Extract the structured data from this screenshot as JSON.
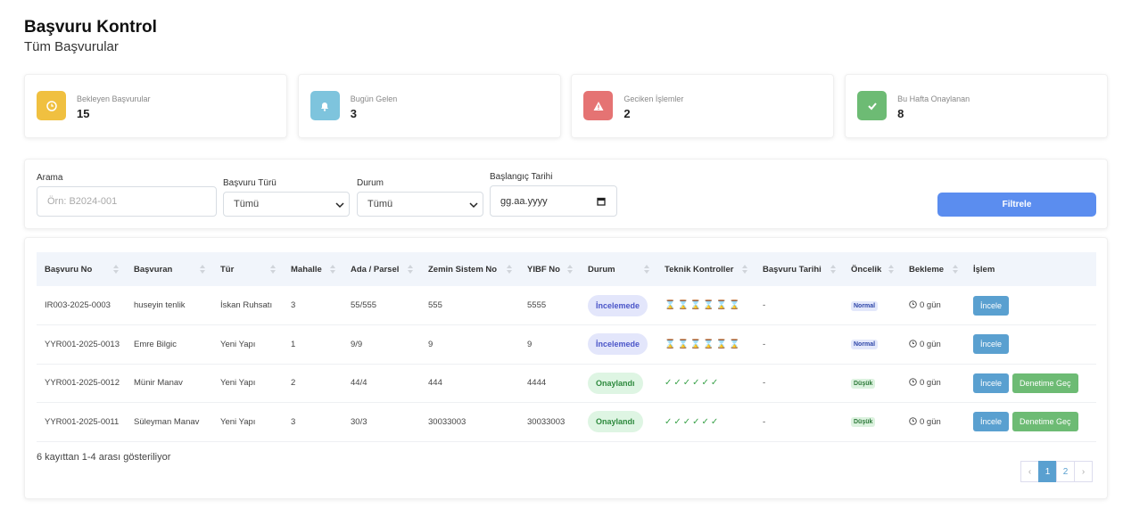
{
  "header": {
    "title": "Başvuru Kontrol",
    "subtitle": "Tüm Başvurular"
  },
  "stats": [
    {
      "label": "Bekleyen Başvurular",
      "value": 15,
      "color": "#f0c040"
    },
    {
      "label": "Bugün Gelen",
      "value": 3,
      "color": "#7ec4dd"
    },
    {
      "label": "Geciken İşlemler",
      "value": 2,
      "color": "#e57373"
    },
    {
      "label": "Bu Hafta Onaylanan",
      "value": 8,
      "color": "#6dbb74"
    }
  ],
  "filters": {
    "search": {
      "label": "Arama",
      "placeholder": "Örn: B2024-001"
    },
    "type": {
      "label": "Başvuru Türü",
      "selected": "Tümü"
    },
    "status": {
      "label": "Durum",
      "selected": "Tümü"
    },
    "date": {
      "label": "Başlangıç Tarihi",
      "placeholder": "gg.aa.yyyy"
    },
    "button": "Filtrele"
  },
  "table": {
    "columns": [
      "Başvuru No",
      "Başvuran",
      "Tür",
      "Mahalle",
      "Ada / Parsel",
      "Zemin Sistem No",
      "YIBF No",
      "Durum",
      "Teknik Kontroller",
      "Başvuru Tarihi",
      "Öncelik",
      "Bekleme",
      "İşlem"
    ],
    "rows": [
      {
        "cells": [
          "IR003-2025-0003",
          "huseyin tenlik",
          "İskan Ruhsatı",
          "3",
          "55/555",
          "555",
          "5555"
        ],
        "status": {
          "text": "İncelemede",
          "color": "#4a55c8",
          "bg": "#e3e6fb"
        },
        "checks": {
          "text": "⌛⌛⌛⌛⌛⌛",
          "color": "#c8a85a"
        },
        "date": "-",
        "priority": {
          "text": "Normal",
          "color": "#2e46a8",
          "bg": "#e3e8fb"
        },
        "wait": "0 gün",
        "actions": [
          "İncele"
        ]
      },
      {
        "cells": [
          "YYR001-2025-0013",
          "Emre Bilgic",
          "Yeni Yapı",
          "1",
          "9/9",
          "9",
          "9"
        ],
        "status": {
          "text": "İncelemede",
          "color": "#4a55c8",
          "bg": "#e3e6fb"
        },
        "checks": {
          "text": "⌛⌛⌛⌛⌛⌛",
          "color": "#c8a85a"
        },
        "date": "-",
        "priority": {
          "text": "Normal",
          "color": "#2e46a8",
          "bg": "#e3e8fb"
        },
        "wait": "0 gün",
        "actions": [
          "İncele"
        ]
      },
      {
        "cells": [
          "YYR001-2025-0012",
          "Münir Manav",
          "Yeni Yapı",
          "2",
          "44/4",
          "444",
          "4444"
        ],
        "status": {
          "text": "Onaylandı",
          "color": "#2e8a3e",
          "bg": "#def5e3"
        },
        "checks": {
          "text": "✓✓✓✓✓✓",
          "color": "#3aa24a"
        },
        "date": "-",
        "priority": {
          "text": "Düşük",
          "color": "#2e7a3a",
          "bg": "#dcf2df"
        },
        "wait": "0 gün",
        "actions": [
          "İncele",
          "Denetime Geç"
        ]
      },
      {
        "cells": [
          "YYR001-2025-0011",
          "Süleyman Manav",
          "Yeni Yapı",
          "3",
          "30/3",
          "30033003",
          "30033003"
        ],
        "status": {
          "text": "Onaylandı",
          "color": "#2e8a3e",
          "bg": "#def5e3"
        },
        "checks": {
          "text": "✓✓✓✓✓✓",
          "color": "#3aa24a"
        },
        "date": "-",
        "priority": {
          "text": "Düşük",
          "color": "#2e7a3a",
          "bg": "#dcf2df"
        },
        "wait": "0 gün",
        "actions": [
          "İncele",
          "Denetime Geç"
        ]
      }
    ],
    "action_colors": [
      "#5aa0d0",
      "#6dbb74"
    ]
  },
  "footer": {
    "summary": "6 kayıttan 1-4 arası gösteriliyor",
    "pages": [
      "‹",
      "1",
      "2",
      "›"
    ],
    "active_page": 1
  }
}
